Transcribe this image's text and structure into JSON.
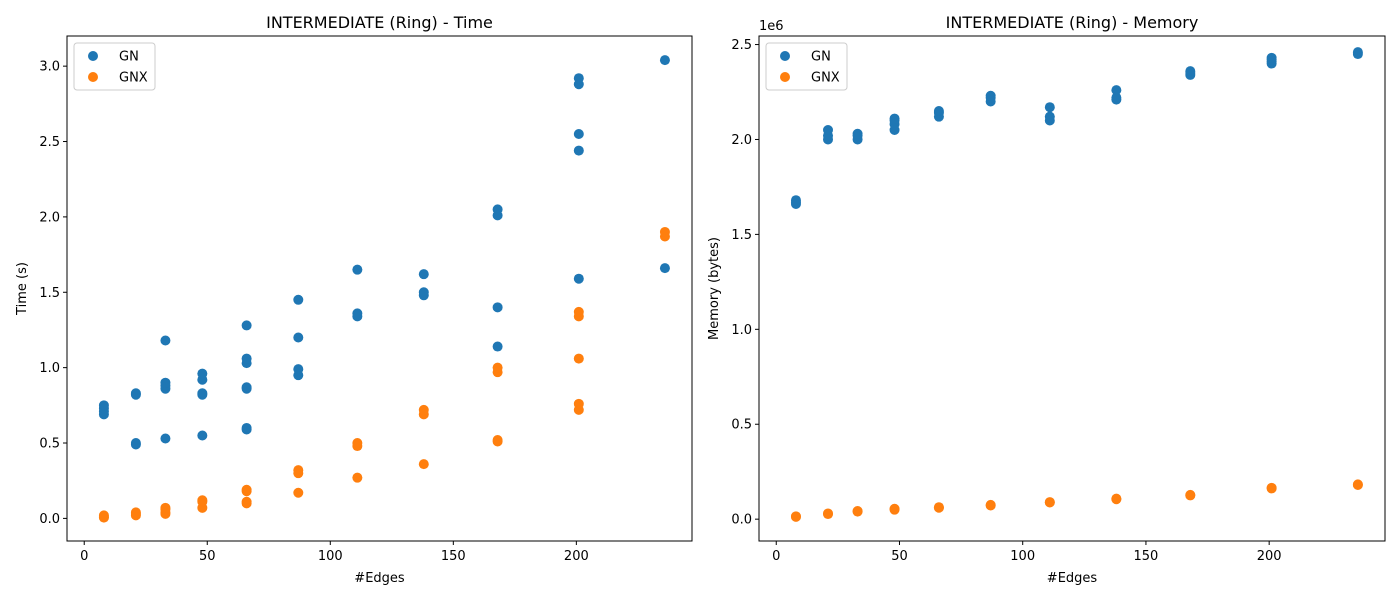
{
  "chart_data": [
    {
      "type": "scatter",
      "title": "INTERMEDIATE (Ring) - Time",
      "xlabel": "#Edges",
      "ylabel": "Time (s)",
      "offset_text": "",
      "xlim": [
        -7,
        247
      ],
      "ylim": [
        -0.15,
        3.2
      ],
      "xticks": [
        0,
        50,
        100,
        150,
        200
      ],
      "yticks": [
        0.0,
        0.5,
        1.0,
        1.5,
        2.0,
        2.5,
        3.0
      ],
      "ytick_labels": [
        "0.0",
        "0.5",
        "1.0",
        "1.5",
        "2.0",
        "2.5",
        "3.0"
      ],
      "grid": false,
      "legend": "upper left",
      "series": [
        {
          "name": "GN",
          "color": "#1f77b4",
          "points": [
            [
              8,
              0.69
            ],
            [
              8,
              0.71
            ],
            [
              8,
              0.73
            ],
            [
              8,
              0.75
            ],
            [
              21,
              0.49
            ],
            [
              21,
              0.5
            ],
            [
              21,
              0.82
            ],
            [
              21,
              0.83
            ],
            [
              33,
              0.53
            ],
            [
              33,
              0.86
            ],
            [
              33,
              0.88
            ],
            [
              33,
              0.9
            ],
            [
              33,
              1.18
            ],
            [
              48,
              0.55
            ],
            [
              48,
              0.82
            ],
            [
              48,
              0.83
            ],
            [
              48,
              0.92
            ],
            [
              48,
              0.96
            ],
            [
              66,
              0.59
            ],
            [
              66,
              0.6
            ],
            [
              66,
              0.86
            ],
            [
              66,
              0.87
            ],
            [
              66,
              1.03
            ],
            [
              66,
              1.06
            ],
            [
              66,
              1.28
            ],
            [
              87,
              0.95
            ],
            [
              87,
              0.99
            ],
            [
              87,
              1.2
            ],
            [
              87,
              1.45
            ],
            [
              111,
              1.34
            ],
            [
              111,
              1.36
            ],
            [
              111,
              1.65
            ],
            [
              138,
              1.48
            ],
            [
              138,
              1.5
            ],
            [
              138,
              1.62
            ],
            [
              168,
              1.14
            ],
            [
              168,
              1.4
            ],
            [
              168,
              2.01
            ],
            [
              168,
              2.05
            ],
            [
              201,
              1.59
            ],
            [
              201,
              2.44
            ],
            [
              201,
              2.55
            ],
            [
              201,
              2.88
            ],
            [
              201,
              2.92
            ],
            [
              236,
              1.66
            ],
            [
              236,
              3.04
            ]
          ]
        },
        {
          "name": "GNX",
          "color": "#ff7f0e",
          "points": [
            [
              8,
              0.005
            ],
            [
              8,
              0.01
            ],
            [
              8,
              0.02
            ],
            [
              21,
              0.02
            ],
            [
              21,
              0.03
            ],
            [
              21,
              0.04
            ],
            [
              33,
              0.03
            ],
            [
              33,
              0.04
            ],
            [
              33,
              0.06
            ],
            [
              33,
              0.07
            ],
            [
              48,
              0.07
            ],
            [
              48,
              0.11
            ],
            [
              48,
              0.12
            ],
            [
              66,
              0.1
            ],
            [
              66,
              0.11
            ],
            [
              66,
              0.18
            ],
            [
              66,
              0.19
            ],
            [
              87,
              0.17
            ],
            [
              87,
              0.3
            ],
            [
              87,
              0.32
            ],
            [
              111,
              0.27
            ],
            [
              111,
              0.48
            ],
            [
              111,
              0.5
            ],
            [
              138,
              0.36
            ],
            [
              138,
              0.69
            ],
            [
              138,
              0.72
            ],
            [
              168,
              0.51
            ],
            [
              168,
              0.52
            ],
            [
              168,
              0.97
            ],
            [
              168,
              1.0
            ],
            [
              201,
              0.72
            ],
            [
              201,
              0.76
            ],
            [
              201,
              1.06
            ],
            [
              201,
              1.34
            ],
            [
              201,
              1.37
            ],
            [
              236,
              1.87
            ],
            [
              236,
              1.9
            ]
          ]
        }
      ]
    },
    {
      "type": "scatter",
      "title": "INTERMEDIATE (Ring) - Memory",
      "xlabel": "#Edges",
      "ylabel": "Memory (bytes)",
      "offset_text": "1e6",
      "xlim": [
        -7,
        247
      ],
      "ylim": [
        -0.115,
        2.545
      ],
      "xticks": [
        0,
        50,
        100,
        150,
        200
      ],
      "yticks": [
        0.0,
        0.5,
        1.0,
        1.5,
        2.0,
        2.5
      ],
      "ytick_labels": [
        "0.0",
        "0.5",
        "1.0",
        "1.5",
        "2.0",
        "2.5"
      ],
      "grid": false,
      "legend": "upper left",
      "series": [
        {
          "name": "GN",
          "color": "#1f77b4",
          "points": [
            [
              8,
              1.66
            ],
            [
              8,
              1.67
            ],
            [
              8,
              1.68
            ],
            [
              21,
              2.0
            ],
            [
              21,
              2.02
            ],
            [
              21,
              2.05
            ],
            [
              33,
              2.0
            ],
            [
              33,
              2.02
            ],
            [
              33,
              2.03
            ],
            [
              48,
              2.05
            ],
            [
              48,
              2.08
            ],
            [
              48,
              2.1
            ],
            [
              48,
              2.11
            ],
            [
              66,
              2.12
            ],
            [
              66,
              2.14
            ],
            [
              66,
              2.15
            ],
            [
              87,
              2.2
            ],
            [
              87,
              2.22
            ],
            [
              87,
              2.23
            ],
            [
              111,
              2.1
            ],
            [
              111,
              2.12
            ],
            [
              111,
              2.17
            ],
            [
              138,
              2.21
            ],
            [
              138,
              2.22
            ],
            [
              138,
              2.26
            ],
            [
              168,
              2.34
            ],
            [
              168,
              2.35
            ],
            [
              168,
              2.36
            ],
            [
              201,
              2.4
            ],
            [
              201,
              2.41
            ],
            [
              201,
              2.42
            ],
            [
              201,
              2.43
            ],
            [
              236,
              2.45
            ],
            [
              236,
              2.46
            ]
          ]
        },
        {
          "name": "GNX",
          "color": "#ff7f0e",
          "points": [
            [
              8,
              0.012
            ],
            [
              8,
              0.015
            ],
            [
              21,
              0.027
            ],
            [
              21,
              0.03
            ],
            [
              33,
              0.04
            ],
            [
              33,
              0.043
            ],
            [
              48,
              0.05
            ],
            [
              48,
              0.055
            ],
            [
              66,
              0.06
            ],
            [
              66,
              0.063
            ],
            [
              87,
              0.072
            ],
            [
              87,
              0.075
            ],
            [
              111,
              0.088
            ],
            [
              111,
              0.09
            ],
            [
              138,
              0.105
            ],
            [
              138,
              0.108
            ],
            [
              168,
              0.125
            ],
            [
              168,
              0.128
            ],
            [
              201,
              0.162
            ],
            [
              201,
              0.165
            ],
            [
              236,
              0.18
            ],
            [
              236,
              0.183
            ]
          ]
        }
      ]
    }
  ]
}
